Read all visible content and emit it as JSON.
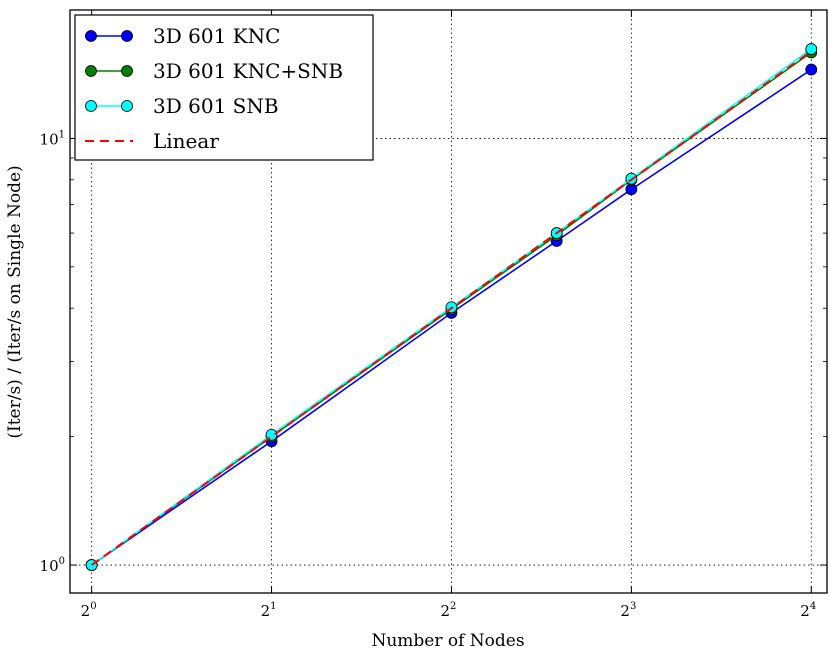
{
  "chart_data": {
    "type": "line",
    "title": "",
    "xlabel": "Number of Nodes",
    "ylabel": "(Iter/s) / (Iter/s on Single Node)",
    "x_scale": "log2",
    "y_scale": "log10",
    "xlim": [
      0.92,
      17.0
    ],
    "ylim": [
      0.86,
      20.0
    ],
    "grid": true,
    "legend_position": "top-left",
    "x_ticks": [
      {
        "base": "2",
        "exp": "0",
        "value": 1
      },
      {
        "base": "2",
        "exp": "1",
        "value": 2
      },
      {
        "base": "2",
        "exp": "2",
        "value": 4
      },
      {
        "base": "2",
        "exp": "3",
        "value": 8
      },
      {
        "base": "2",
        "exp": "4",
        "value": 16
      }
    ],
    "y_ticks": [
      {
        "base": "10",
        "exp": "0",
        "value": 1
      },
      {
        "base": "10",
        "exp": "1",
        "value": 10
      }
    ],
    "series": [
      {
        "name": "3D 601 KNC",
        "color": "#0000ff",
        "marker": "circle",
        "line": "solid",
        "x": [
          1,
          2,
          4,
          6,
          8,
          16
        ],
        "y": [
          1.0,
          1.95,
          3.9,
          5.75,
          7.6,
          14.5
        ]
      },
      {
        "name": "3D 601 KNC+SNB",
        "color": "#008000",
        "marker": "circle",
        "line": "solid",
        "x": [
          1,
          2,
          4,
          6,
          8,
          16
        ],
        "y": [
          1.0,
          2.0,
          3.98,
          5.93,
          8.0,
          15.9
        ]
      },
      {
        "name": "3D 601 SNB",
        "color": "#00ffff",
        "marker": "circle",
        "line": "solid",
        "x": [
          1,
          2,
          4,
          6,
          8,
          16
        ],
        "y": [
          1.0,
          2.02,
          4.02,
          6.0,
          8.05,
          16.2
        ]
      },
      {
        "name": "Linear",
        "color": "#ff0000",
        "marker": "none",
        "line": "dashed",
        "x": [
          1,
          16
        ],
        "y": [
          1.0,
          16.0
        ]
      }
    ]
  }
}
